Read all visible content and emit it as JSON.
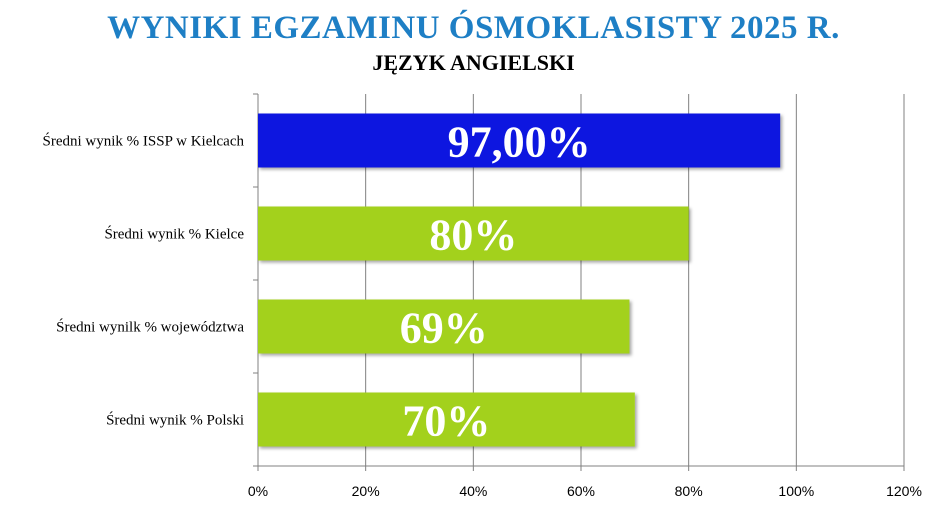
{
  "chart_data": {
    "type": "bar",
    "orientation": "horizontal",
    "title": "WYNIKI EGZAMINU ÓSMOKLASISTY 2025 R.",
    "subtitle": "JĘZYK ANGIELSKI",
    "categories": [
      "Średni wynik % ISSP w Kielcach",
      "Średni wynik % Kielce",
      "Średni wynilk % województwa",
      "Średni wynik % Polski"
    ],
    "values": [
      97,
      80,
      69,
      70
    ],
    "data_labels": [
      "97,00%",
      "80%",
      "69%",
      "70%"
    ],
    "bar_colors": [
      "#0a16e0",
      "#a3d11e",
      "#a3d11e",
      "#a3d11e"
    ],
    "xlim": [
      0,
      120
    ],
    "xticks": [
      0,
      20,
      40,
      60,
      80,
      100,
      120
    ],
    "xtick_labels": [
      "0%",
      "20%",
      "40%",
      "60%",
      "80%",
      "100%",
      "120%"
    ],
    "grid": true,
    "legend": false
  }
}
